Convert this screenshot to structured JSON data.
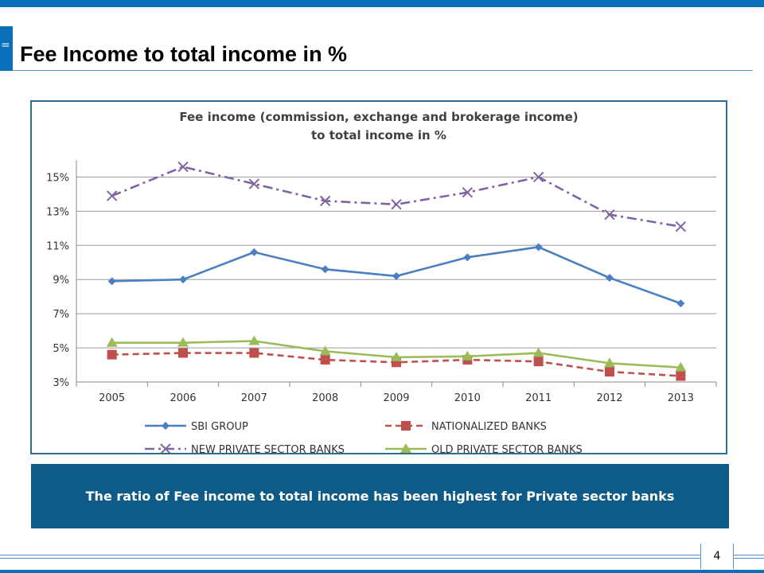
{
  "slide": {
    "title": "Fee Income to total income in %",
    "menu_glyph": "=",
    "callout": "The ratio of Fee income to total income has been highest for Private sector banks",
    "page_number": "4"
  },
  "colors": {
    "accent": "#0a6fb8",
    "callout_bg": "#0f5b88"
  },
  "chart_data": {
    "type": "line",
    "title": "Fee income (commission, exchange and brokerage income) to total income in %",
    "title_lines": [
      "Fee income (commission, exchange and brokerage income)",
      "to total income in %"
    ],
    "categories": [
      "2005",
      "2006",
      "2007",
      "2008",
      "2009",
      "2010",
      "2011",
      "2012",
      "2013"
    ],
    "ylim": [
      3,
      16
    ],
    "yticks": [
      3,
      5,
      7,
      9,
      11,
      13,
      15
    ],
    "ytick_labels": [
      "3%",
      "5%",
      "7%",
      "9%",
      "11%",
      "13%",
      "15%"
    ],
    "grid": true,
    "legend_position": "bottom",
    "series": [
      {
        "name": "SBI GROUP",
        "color": "#4a7fc1",
        "marker": "diamond",
        "dash": "solid",
        "values": [
          8.9,
          9.0,
          10.6,
          9.6,
          9.2,
          10.3,
          10.9,
          9.1,
          7.6
        ]
      },
      {
        "name": "NATIONALIZED BANKS",
        "color": "#c0504d",
        "marker": "square",
        "dash": "dashed",
        "values": [
          4.6,
          4.7,
          4.7,
          4.3,
          4.15,
          4.3,
          4.2,
          3.6,
          3.35
        ]
      },
      {
        "name": "NEW PRIVATE SECTOR BANKS",
        "color": "#8064a2",
        "marker": "x",
        "dash": "dashdot",
        "values": [
          13.9,
          15.6,
          14.6,
          13.6,
          13.4,
          14.1,
          15.0,
          12.8,
          12.1
        ]
      },
      {
        "name": "OLD PRIVATE SECTOR BANKS",
        "color": "#9bbb59",
        "marker": "triangle",
        "dash": "solid",
        "values": [
          5.3,
          5.3,
          5.4,
          4.8,
          4.45,
          4.5,
          4.7,
          4.1,
          3.85
        ]
      }
    ]
  }
}
